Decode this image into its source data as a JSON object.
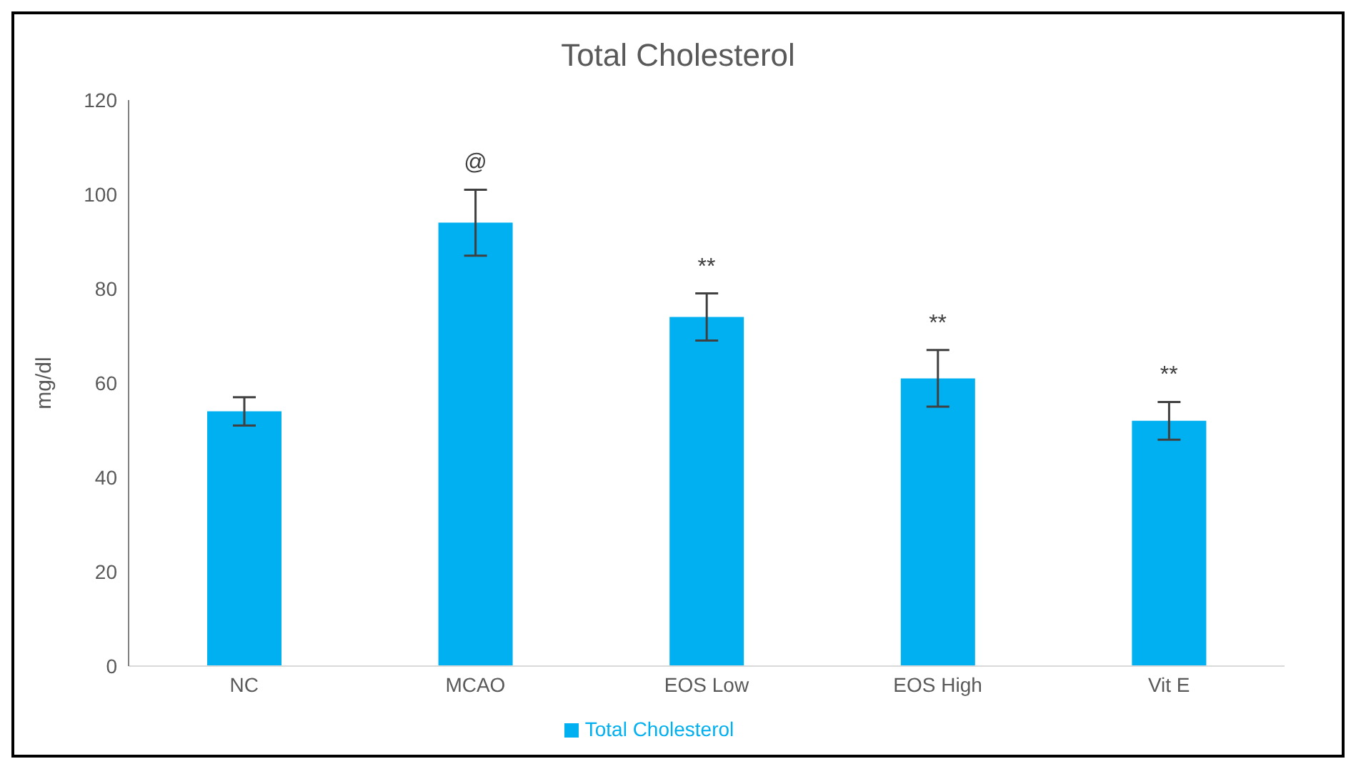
{
  "chart_data": {
    "type": "bar",
    "title": "Total Cholesterol",
    "ylabel": "mg/dl",
    "categories": [
      "NC",
      "MCAO",
      "EOS Low",
      "EOS High",
      "Vit E"
    ],
    "series": [
      {
        "name": "Total Cholesterol",
        "color": "#00b0f0",
        "values": [
          54,
          94,
          74,
          61,
          52
        ],
        "errors": [
          3,
          7,
          5,
          6,
          4
        ]
      }
    ],
    "ylim": [
      0,
      120
    ],
    "yticks": [
      0,
      20,
      40,
      60,
      80,
      100,
      120
    ],
    "grid": false,
    "legend": "bottom",
    "annotations": [
      {
        "text": "@",
        "x": "MCAO",
        "y": 101
      },
      {
        "text": "**",
        "x": "EOS Low",
        "y": 79
      },
      {
        "text": "**",
        "x": "EOS High",
        "y": 67
      },
      {
        "text": "**",
        "x": "Vit E",
        "y": 56
      }
    ]
  }
}
